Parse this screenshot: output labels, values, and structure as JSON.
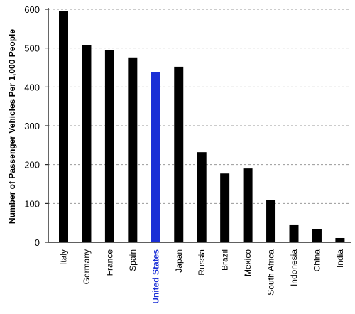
{
  "chart_data": {
    "type": "bar",
    "categories": [
      "Italy",
      "Germany",
      "France",
      "Spain",
      "United States",
      "Japan",
      "Russia",
      "Brazil",
      "Mexico",
      "South Africa",
      "Indonesia",
      "China",
      "India"
    ],
    "values": [
      595,
      508,
      494,
      476,
      438,
      452,
      232,
      177,
      190,
      109,
      44,
      34,
      11
    ],
    "title": "",
    "xlabel": "",
    "ylabel": "Number of Passenger Vehicles Per 1,000 People",
    "ylim": [
      0,
      600
    ],
    "yticks": [
      0,
      100,
      200,
      300,
      400,
      500,
      600
    ],
    "grid": "horizontal dashed",
    "bar_color": "#000000",
    "highlight_category": "United States",
    "highlight_color": "#1a2fd6",
    "axis_text_color": "#000000",
    "grid_color": "#9a9a9a"
  }
}
